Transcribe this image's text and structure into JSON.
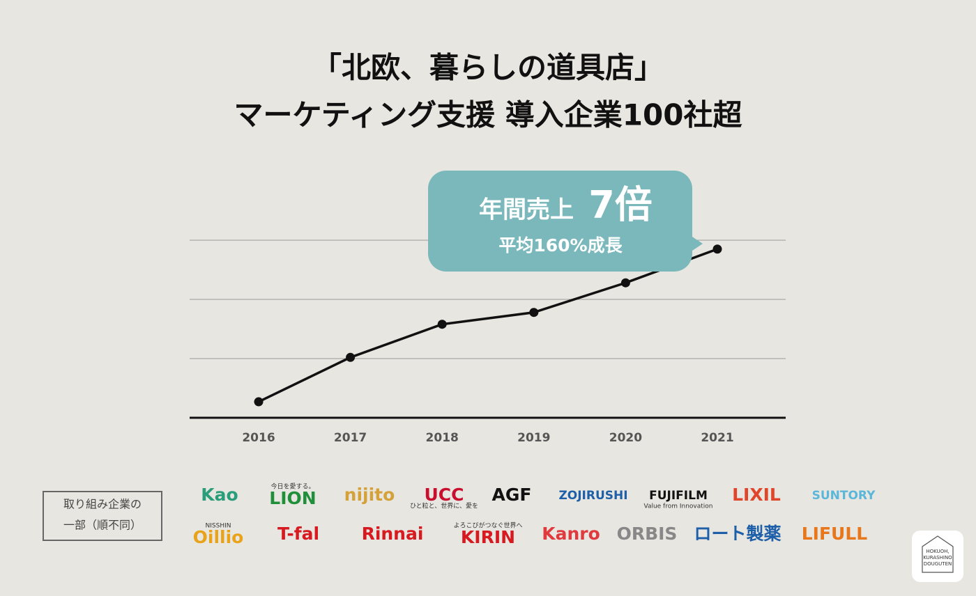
{
  "chart_data": {
    "type": "line",
    "title": [
      "「北欧、暮らしの道具店」",
      "マーケティング支援 導入企業100社超"
    ],
    "categories": [
      "2016",
      "2017",
      "2018",
      "2019",
      "2020",
      "2021"
    ],
    "values": [
      0.27,
      1.02,
      1.58,
      1.78,
      2.28,
      2.85
    ],
    "color": "#111111",
    "ylim": [
      0,
      3
    ],
    "yticks": [
      1,
      2,
      3
    ],
    "grid": true,
    "callout": {
      "label": "年間売上",
      "value": "7倍",
      "sub": "平均160%成長"
    }
  },
  "clients": {
    "label": [
      "取り組み企業の",
      "一部（順不同）"
    ],
    "logos": [
      [
        {
          "text": "Kao",
          "color": "#2a9d7a"
        },
        {
          "text": "LION",
          "sub": "今日を愛する。",
          "color": "#1f8f3a"
        },
        {
          "text": "nijito",
          "color": "#d4a13a"
        },
        {
          "text": "UCC",
          "sub": "ひと粒と、世界に、愛を",
          "color": "#c8102e"
        },
        {
          "text": "AGF",
          "color": "#111111"
        },
        {
          "text": "ZOJIRUSHI",
          "color": "#1d5fa8"
        },
        {
          "text": "FUJIFILM",
          "sub": "Value from Innovation",
          "color": "#111111"
        },
        {
          "text": "LIXIL",
          "color": "#e0462b"
        },
        {
          "text": "SUNTORY",
          "color": "#5bb7d9"
        }
      ],
      [
        {
          "text": "Oillio",
          "sub": "NISSHIN",
          "color": "#e8a31a"
        },
        {
          "text": "T-fal",
          "color": "#d71920"
        },
        {
          "text": "Rinnai",
          "color": "#d71920"
        },
        {
          "text": "KIRIN",
          "sub": "よろこびがつなぐ世界へ",
          "color": "#d71920"
        },
        {
          "text": "Kanro",
          "color": "#e03a3e"
        },
        {
          "text": "ORBIS",
          "color": "#888888"
        },
        {
          "text": "ロート製薬",
          "color": "#1d5fa8"
        },
        {
          "text": "LIFULL",
          "color": "#e8761a"
        }
      ]
    ]
  },
  "brand": [
    "HOKUOH,",
    "KURASHINO",
    "DOUGUTEN"
  ]
}
